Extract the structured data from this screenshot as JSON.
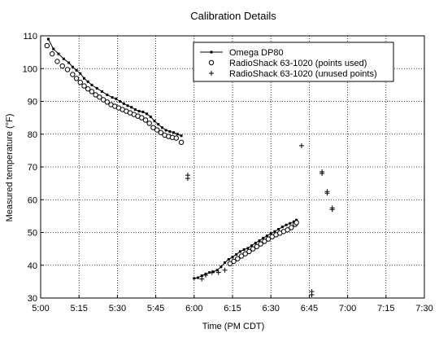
{
  "chart_data": {
    "type": "scatter",
    "title": "Calibration Details",
    "xlabel": "Time (PM CDT)",
    "ylabel": "Measured temperature (°F)",
    "xlim": [
      0,
      150
    ],
    "ylim": [
      30,
      110
    ],
    "x_ticks": [
      0,
      15,
      30,
      45,
      60,
      75,
      90,
      105,
      120,
      135,
      150
    ],
    "x_tick_labels": [
      "5:00",
      "5:15",
      "5:30",
      "5:45",
      "6:00",
      "6:15",
      "6:30",
      "6:45",
      "7:00",
      "7:15",
      "7:30"
    ],
    "y_ticks": [
      30,
      40,
      50,
      60,
      70,
      80,
      90,
      100,
      110
    ],
    "grid": true,
    "legend_position": "top-right",
    "series": [
      {
        "name": "Omega DP80",
        "style": "line-with-small-squares",
        "segments": [
          [
            [
              3,
              109
            ],
            [
              5,
              106
            ],
            [
              7,
              104.5
            ],
            [
              9,
              103
            ],
            [
              11,
              101.8
            ],
            [
              12.5,
              100.5
            ],
            [
              14,
              99.5
            ],
            [
              15.5,
              98.5
            ],
            [
              17,
              97
            ],
            [
              18.5,
              96
            ],
            [
              20,
              95
            ],
            [
              22,
              94
            ],
            [
              24,
              93
            ],
            [
              26,
              92
            ],
            [
              28,
              91.2
            ],
            [
              29.5,
              90.8
            ],
            [
              31,
              90
            ],
            [
              32.5,
              89.3
            ],
            [
              34,
              88.7
            ],
            [
              35.5,
              88.2
            ],
            [
              37,
              87.5
            ],
            [
              38.5,
              87
            ],
            [
              40,
              86.8
            ],
            [
              41.5,
              86.2
            ],
            [
              43,
              85.3
            ],
            [
              44.5,
              84
            ],
            [
              46,
              83
            ],
            [
              47.5,
              82
            ],
            [
              49,
              81.2
            ],
            [
              50.5,
              80.8
            ],
            [
              52,
              80.5
            ],
            [
              53.5,
              80
            ],
            [
              55,
              79.5
            ]
          ],
          [
            [
              60,
              36
            ],
            [
              61.5,
              36.2
            ],
            [
              63,
              36.8
            ],
            [
              64.5,
              37.3
            ],
            [
              66,
              37.8
            ],
            [
              67.5,
              38
            ],
            [
              69,
              38.5
            ],
            [
              70.5,
              39.5
            ],
            [
              72,
              40.8
            ],
            [
              73.5,
              41.8
            ],
            [
              75,
              42.5
            ],
            [
              76.5,
              43.3
            ],
            [
              78,
              44.2
            ],
            [
              79.5,
              44.8
            ],
            [
              81,
              45.2
            ],
            [
              82.5,
              46
            ],
            [
              84,
              46.8
            ],
            [
              85.5,
              47.5
            ],
            [
              87,
              48.3
            ],
            [
              88.5,
              49
            ],
            [
              90,
              49.7
            ],
            [
              91.5,
              50.3
            ],
            [
              93,
              51
            ],
            [
              94.5,
              51.7
            ],
            [
              96,
              52.3
            ],
            [
              97.5,
              52.8
            ],
            [
              99,
              53.3
            ],
            [
              100,
              53.8
            ]
          ]
        ]
      },
      {
        "name": "RadioShack 63-1020 (points used)",
        "style": "open-circle",
        "points": [
          [
            2.5,
            107
          ],
          [
            4.5,
            104.5
          ],
          [
            6.5,
            102.2
          ],
          [
            8.5,
            100.8
          ],
          [
            10.5,
            99.7
          ],
          [
            12.5,
            98.2
          ],
          [
            14,
            97
          ],
          [
            15.5,
            95.8
          ],
          [
            17,
            94.7
          ],
          [
            18.5,
            93.8
          ],
          [
            20,
            93
          ],
          [
            21.5,
            92
          ],
          [
            23,
            91.3
          ],
          [
            24.5,
            90.5
          ],
          [
            26,
            89.8
          ],
          [
            27.5,
            89
          ],
          [
            29,
            88.5
          ],
          [
            30.5,
            88
          ],
          [
            32,
            87.5
          ],
          [
            33.5,
            87
          ],
          [
            35,
            86.5
          ],
          [
            36.5,
            86
          ],
          [
            38,
            85.5
          ],
          [
            39.5,
            85
          ],
          [
            41,
            84.3
          ],
          [
            42.5,
            83.3
          ],
          [
            44,
            82
          ],
          [
            45.5,
            81.3
          ],
          [
            47,
            80.5
          ],
          [
            48.5,
            79.7
          ],
          [
            50,
            79.3
          ],
          [
            51.5,
            79
          ],
          [
            53,
            78.8
          ],
          [
            55,
            77.5
          ],
          [
            74,
            40.5
          ],
          [
            75.5,
            41.2
          ],
          [
            77,
            42
          ],
          [
            78.5,
            42.8
          ],
          [
            80,
            43.5
          ],
          [
            81.5,
            44.2
          ],
          [
            83,
            45
          ],
          [
            84.5,
            45.7
          ],
          [
            86,
            46.5
          ],
          [
            87.5,
            47.3
          ],
          [
            89,
            48
          ],
          [
            90.5,
            48.7
          ],
          [
            92,
            49.3
          ],
          [
            93.5,
            49.8
          ],
          [
            95,
            50.3
          ],
          [
            96.5,
            50.8
          ],
          [
            98,
            51.5
          ],
          [
            99.5,
            52.5
          ],
          [
            100,
            53
          ]
        ]
      },
      {
        "name": "RadioShack 63-1020 (unused points)",
        "style": "plus",
        "points": [
          [
            57.5,
            66.5
          ],
          [
            57.5,
            67.5
          ],
          [
            63,
            35.8
          ],
          [
            64.5,
            37
          ],
          [
            67,
            37.8
          ],
          [
            69.5,
            37.8
          ],
          [
            72,
            38.5
          ],
          [
            102,
            76.5
          ],
          [
            106,
            31
          ],
          [
            106,
            32
          ],
          [
            110,
            68
          ],
          [
            110,
            68.5
          ],
          [
            112,
            62
          ],
          [
            112,
            62.5
          ],
          [
            114,
            57
          ],
          [
            114,
            57.5
          ]
        ]
      }
    ]
  }
}
